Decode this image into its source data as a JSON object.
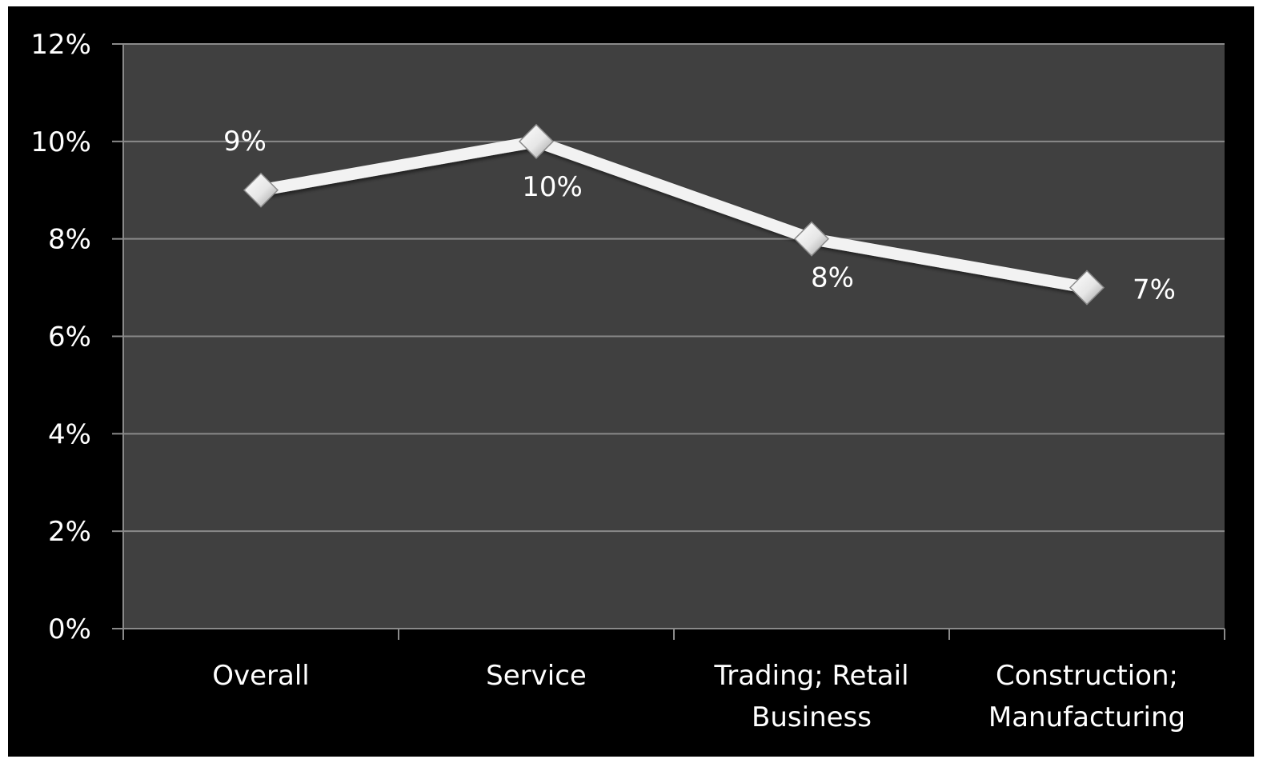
{
  "chart_data": {
    "type": "line",
    "categories": [
      [
        "Overall"
      ],
      [
        "Service"
      ],
      [
        "Trading; Retail",
        "Business"
      ],
      [
        "Construction;",
        "Manufacturing"
      ]
    ],
    "series": [
      {
        "values": [
          9,
          10,
          8,
          7
        ],
        "data_labels": [
          "9%",
          "10%",
          "8%",
          "7%"
        ]
      }
    ],
    "y_ticks": [
      "0%",
      "2%",
      "4%",
      "6%",
      "8%",
      "10%",
      "12%"
    ],
    "ylim": [
      0,
      12
    ],
    "title": "",
    "xlabel": "",
    "ylabel": "",
    "grid": true,
    "legend": "none",
    "colors": {
      "background": "#000000",
      "plot_background": "#404040",
      "gridline": "#8a8a8a",
      "line": "#f2f2f2",
      "marker": "#dcdcdc",
      "text": "#ffffff"
    }
  }
}
